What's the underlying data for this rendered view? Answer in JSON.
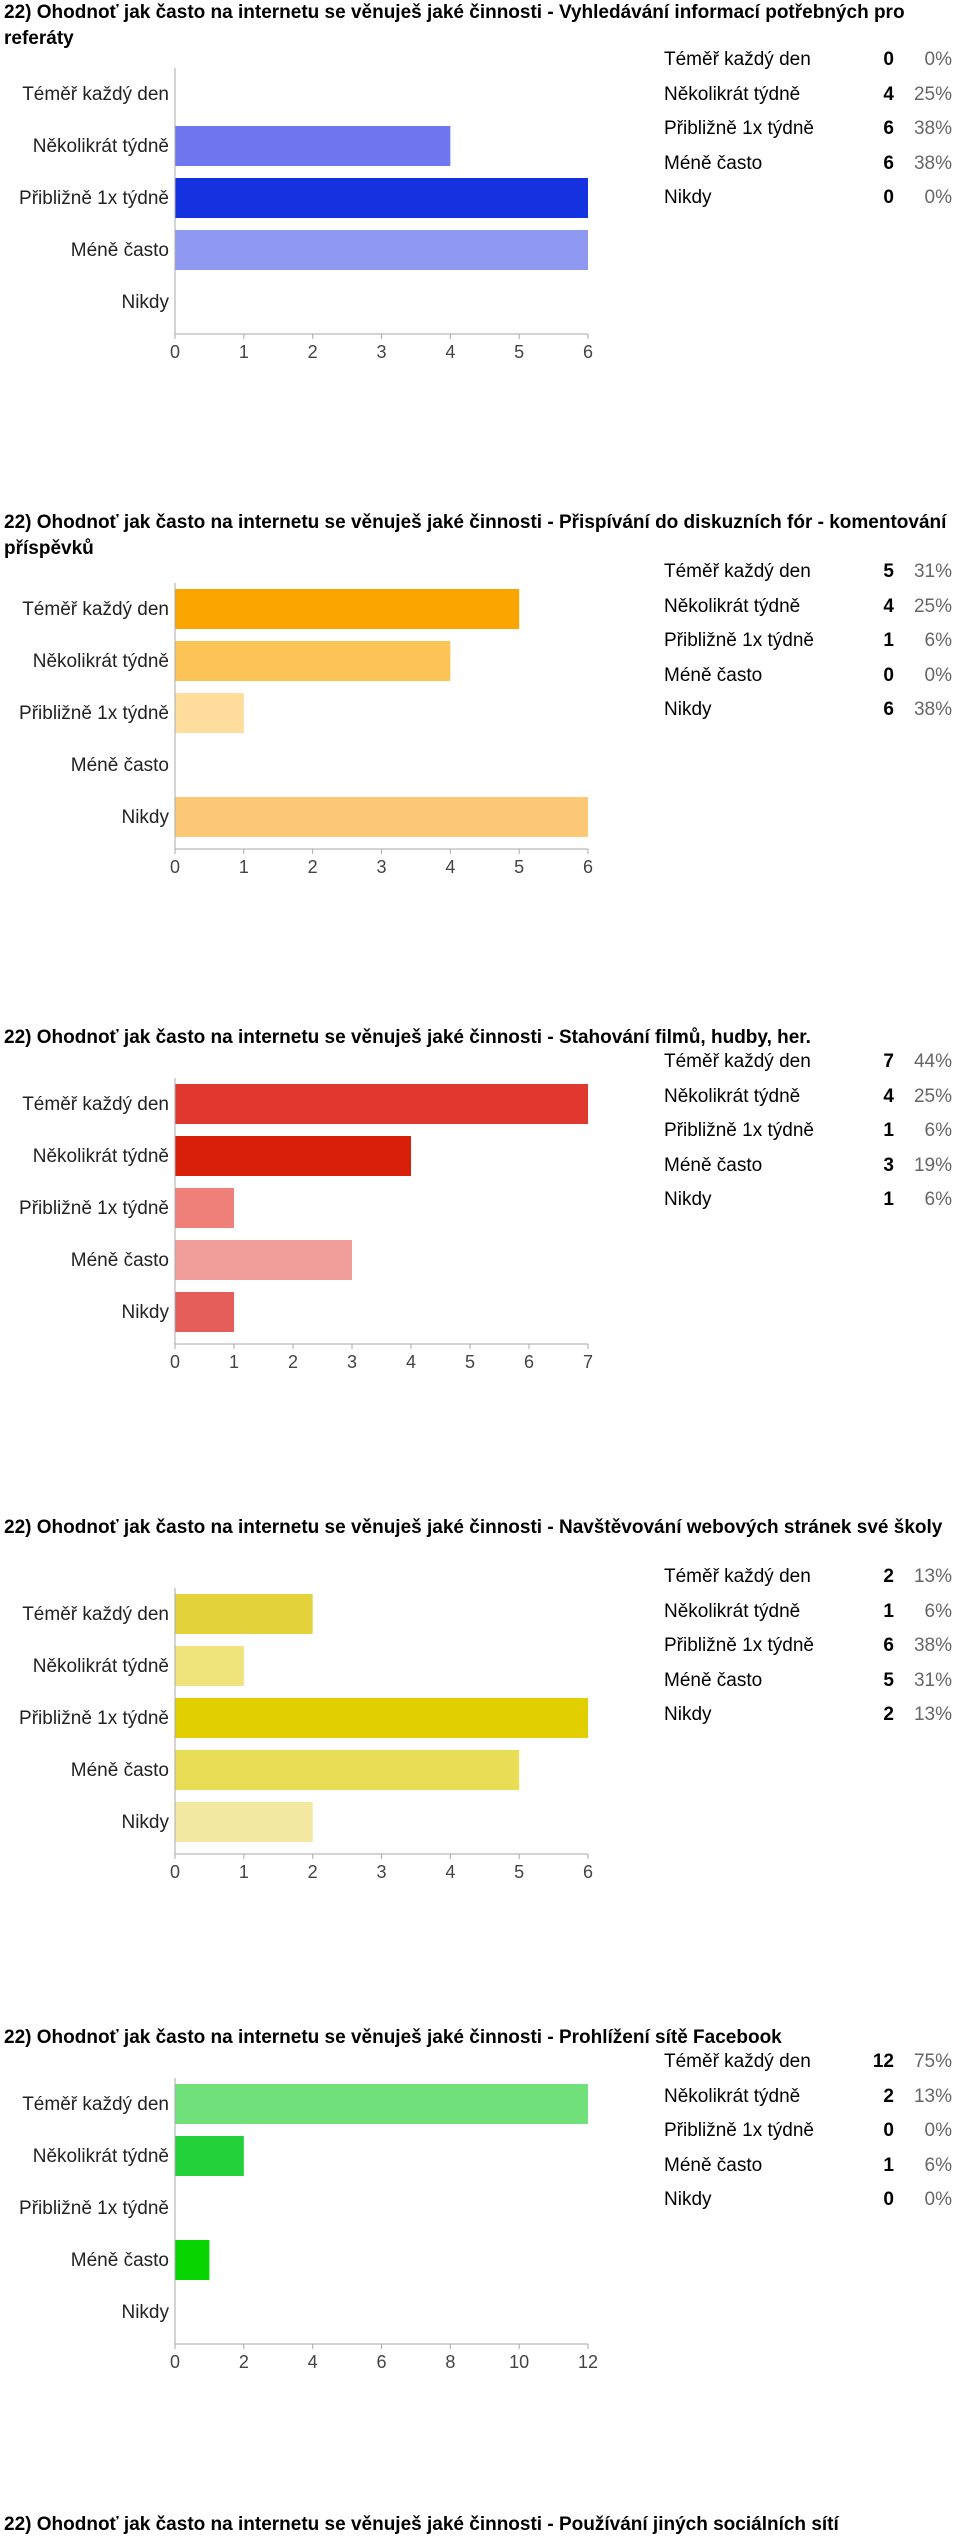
{
  "sections": [
    {
      "title": "22) Ohodnoť jak často na internetu se věnuješ jaké činnosti - Vyhledávání informací potřebných pro referáty",
      "legend": [
        {
          "label": "Téměř každý den",
          "count": "0",
          "pct": "0%"
        },
        {
          "label": "Několikrát týdně",
          "count": "4",
          "pct": "25%"
        },
        {
          "label": "Přibližně 1x týdně",
          "count": "6",
          "pct": "38%"
        },
        {
          "label": "Méně často",
          "count": "6",
          "pct": "38%"
        },
        {
          "label": "Nikdy",
          "count": "0",
          "pct": "0%"
        }
      ]
    },
    {
      "title": "22) Ohodnoť jak často na internetu se věnuješ jaké činnosti - Přispívání do diskuzních fór - komentování příspěvků",
      "legend": [
        {
          "label": "Téměř každý den",
          "count": "5",
          "pct": "31%"
        },
        {
          "label": "Několikrát týdně",
          "count": "4",
          "pct": "25%"
        },
        {
          "label": "Přibližně 1x týdně",
          "count": "1",
          "pct": "6%"
        },
        {
          "label": "Méně často",
          "count": "0",
          "pct": "0%"
        },
        {
          "label": "Nikdy",
          "count": "6",
          "pct": "38%"
        }
      ]
    },
    {
      "title": "22) Ohodnoť jak často na internetu se věnuješ jaké činnosti - Stahování filmů, hudby, her.",
      "legend": [
        {
          "label": "Téměř každý den",
          "count": "7",
          "pct": "44%"
        },
        {
          "label": "Několikrát týdně",
          "count": "4",
          "pct": "25%"
        },
        {
          "label": "Přibližně 1x týdně",
          "count": "1",
          "pct": "6%"
        },
        {
          "label": "Méně často",
          "count": "3",
          "pct": "19%"
        },
        {
          "label": "Nikdy",
          "count": "1",
          "pct": "6%"
        }
      ]
    },
    {
      "title": "22) Ohodnoť jak často na internetu se věnuješ jaké činnosti - Navštěvování webových stránek své školy",
      "legend": [
        {
          "label": "Téměř každý den",
          "count": "2",
          "pct": "13%"
        },
        {
          "label": "Několikrát týdně",
          "count": "1",
          "pct": "6%"
        },
        {
          "label": "Přibližně 1x týdně",
          "count": "6",
          "pct": "38%"
        },
        {
          "label": "Méně často",
          "count": "5",
          "pct": "31%"
        },
        {
          "label": "Nikdy",
          "count": "2",
          "pct": "13%"
        }
      ]
    },
    {
      "title": "22) Ohodnoť jak často na internetu se věnuješ jaké činnosti - Prohlížení sítě Facebook",
      "legend": [
        {
          "label": "Téměř každý den",
          "count": "12",
          "pct": "75%"
        },
        {
          "label": "Několikrát týdně",
          "count": "2",
          "pct": "13%"
        },
        {
          "label": "Přibližně 1x týdně",
          "count": "0",
          "pct": "0%"
        },
        {
          "label": "Méně často",
          "count": "1",
          "pct": "6%"
        },
        {
          "label": "Nikdy",
          "count": "0",
          "pct": "0%"
        }
      ]
    },
    {
      "title": "22) Ohodnoť jak často na internetu se věnuješ jaké činnosti - Používání jiných sociálních sítí",
      "legend": []
    }
  ],
  "chart_data": [
    {
      "type": "bar",
      "orientation": "horizontal",
      "categories": [
        "Téměř každý den",
        "Několikrát týdně",
        "Přibližně 1x týdně",
        "Méně často",
        "Nikdy"
      ],
      "values": [
        0,
        4,
        6,
        6,
        0
      ],
      "xlim": [
        0,
        6
      ],
      "xticks": [
        "0",
        "1",
        "2",
        "3",
        "4",
        "5",
        "6"
      ],
      "colors": [
        "#3b4ce6",
        "#6f77ee",
        "#1532e0",
        "#8f98f0",
        "#b3b9f5"
      ],
      "grid": false
    },
    {
      "type": "bar",
      "orientation": "horizontal",
      "categories": [
        "Téměř každý den",
        "Několikrát týdně",
        "Přibližně 1x týdně",
        "Méně často",
        "Nikdy"
      ],
      "values": [
        5,
        4,
        1,
        0,
        6
      ],
      "xlim": [
        0,
        6
      ],
      "xticks": [
        "0",
        "1",
        "2",
        "3",
        "4",
        "5",
        "6"
      ],
      "colors": [
        "#fba600",
        "#fcc456",
        "#fedd9d",
        "#fdd27c",
        "#fdc977"
      ],
      "grid": false
    },
    {
      "type": "bar",
      "orientation": "horizontal",
      "categories": [
        "Téměř každý den",
        "Několikrát týdně",
        "Přibližně 1x týdně",
        "Méně často",
        "Nikdy"
      ],
      "values": [
        7,
        4,
        1,
        3,
        1
      ],
      "xlim": [
        0,
        7
      ],
      "xticks": [
        "0",
        "1",
        "2",
        "3",
        "4",
        "5",
        "6",
        "7"
      ],
      "colors": [
        "#e0382f",
        "#d81f0a",
        "#ef8079",
        "#f19d99",
        "#e55e59"
      ],
      "grid": false
    },
    {
      "type": "bar",
      "orientation": "horizontal",
      "categories": [
        "Téměř každý den",
        "Několikrát týdně",
        "Přibližně 1x týdně",
        "Méně často",
        "Nikdy"
      ],
      "values": [
        2,
        1,
        6,
        5,
        2
      ],
      "xlim": [
        0,
        6
      ],
      "xticks": [
        "0",
        "1",
        "2",
        "3",
        "4",
        "5",
        "6"
      ],
      "colors": [
        "#e3d23a",
        "#efe37c",
        "#e2cf00",
        "#e9dd55",
        "#f2e8a1"
      ],
      "grid": false
    },
    {
      "type": "bar",
      "orientation": "horizontal",
      "categories": [
        "Téměř každý den",
        "Několikrát týdně",
        "Přibližně 1x týdně",
        "Méně často",
        "Nikdy"
      ],
      "values": [
        12,
        2,
        0,
        1,
        0
      ],
      "xlim": [
        0,
        12
      ],
      "xticks": [
        "0",
        "2",
        "4",
        "6",
        "8",
        "10",
        "12"
      ],
      "colors": [
        "#70e07a",
        "#23d23a",
        "#9ae9a2",
        "#08d400",
        "#b8f0bc"
      ],
      "grid": false
    }
  ]
}
